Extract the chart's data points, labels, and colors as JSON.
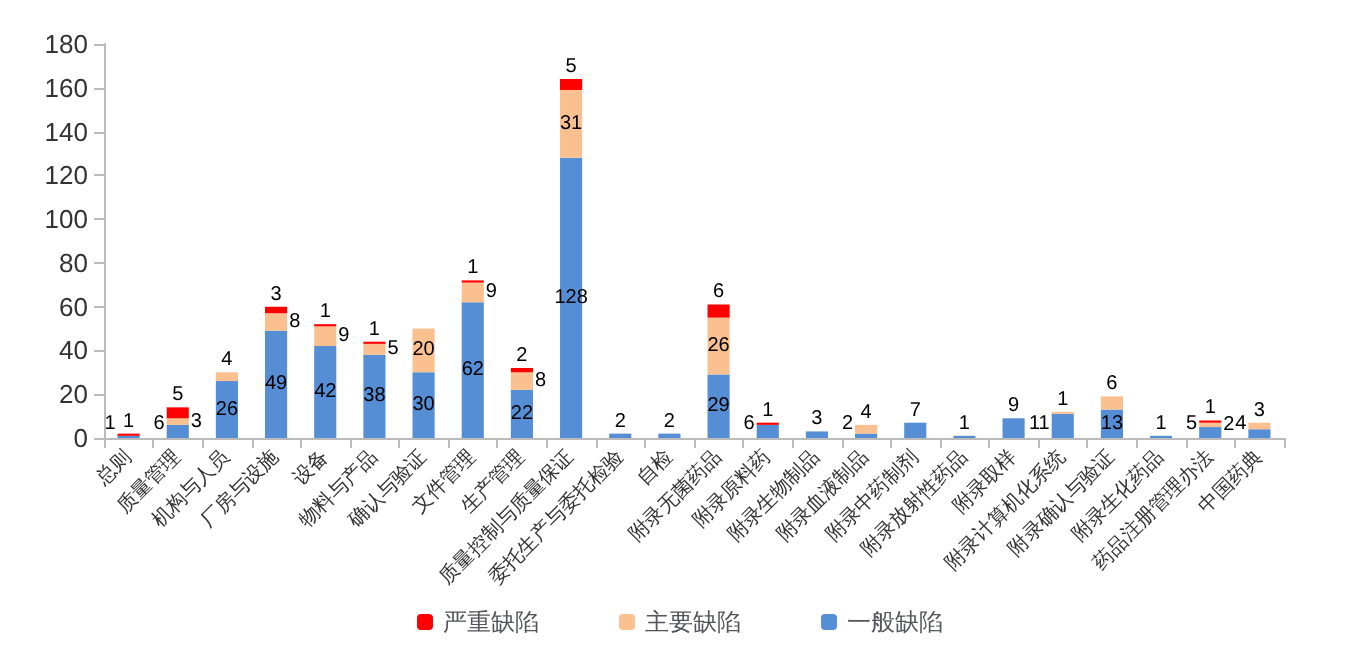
{
  "chart_data": {
    "type": "bar",
    "stacked": true,
    "categories": [
      "总则",
      "质量管理",
      "机构与人员",
      "厂房与设施",
      "设备",
      "物料与产品",
      "确认与验证",
      "文件管理",
      "生产管理",
      "质量控制与质量保证",
      "委托生产与委托检验",
      "自检",
      "附录无菌药品",
      "附录原料药",
      "附录生物制品",
      "附录血液制品",
      "附录中药制剂",
      "附录放射性药品",
      "附录取样",
      "附录计算机化系统",
      "附录确认与验证",
      "附录生化药品",
      "药品注册管理办法",
      "中国药典"
    ],
    "series": [
      {
        "name": "一般缺陷",
        "color": "#558ed5",
        "values": [
          1,
          6,
          26,
          49,
          42,
          38,
          30,
          62,
          22,
          128,
          2,
          2,
          29,
          6,
          3,
          2,
          7,
          1,
          9,
          11,
          13,
          1,
          5,
          4
        ]
      },
      {
        "name": "主要缺陷",
        "color": "#fac090",
        "values": [
          null,
          3,
          4,
          8,
          9,
          5,
          20,
          9,
          8,
          31,
          null,
          null,
          26,
          null,
          null,
          4,
          null,
          null,
          null,
          1,
          6,
          null,
          2,
          3
        ]
      },
      {
        "name": "严重缺陷",
        "color": "#ff0000",
        "values": [
          1,
          5,
          null,
          3,
          1,
          1,
          null,
          1,
          2,
          5,
          null,
          null,
          6,
          1,
          null,
          null,
          null,
          null,
          null,
          null,
          null,
          null,
          1,
          null
        ]
      }
    ],
    "ylim": [
      0,
      180
    ],
    "yticks": [
      0,
      20,
      40,
      60,
      80,
      100,
      120,
      140,
      160,
      180
    ],
    "grid": false,
    "legend": "bottom",
    "data_labels": true
  }
}
